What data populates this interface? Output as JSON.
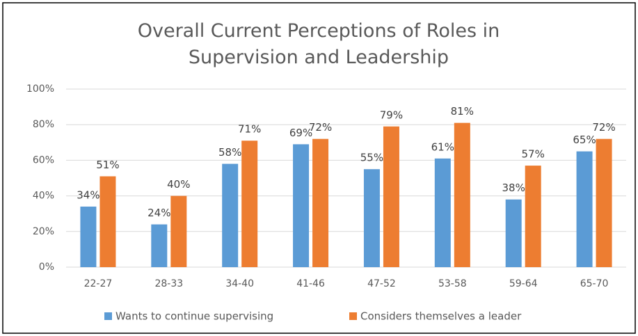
{
  "chart_data": {
    "type": "bar",
    "title": "Overall Current Perceptions of Roles in Supervision and Leadership",
    "categories": [
      "22-27",
      "28-33",
      "34-40",
      "41-46",
      "47-52",
      "53-58",
      "59-64",
      "65-70"
    ],
    "series": [
      {
        "name": "Wants to continue supervising",
        "color": "#5b9bd5",
        "values": [
          34,
          24,
          58,
          69,
          55,
          61,
          38,
          65
        ],
        "value_labels": [
          "34%",
          "24%",
          "58%",
          "69%",
          "55%",
          "61%",
          "38%",
          "65%"
        ]
      },
      {
        "name": "Considers themselves a leader",
        "color": "#ed7d31",
        "values": [
          51,
          40,
          71,
          72,
          79,
          81,
          57,
          72
        ],
        "value_labels": [
          "51%",
          "40%",
          "71%",
          "72%",
          "79%",
          "81%",
          "57%",
          "72%"
        ]
      }
    ],
    "ylim": [
      0,
      100
    ],
    "yticks": [
      {
        "value": 0,
        "label": "0%"
      },
      {
        "value": 20,
        "label": "20%"
      },
      {
        "value": 40,
        "label": "40%"
      },
      {
        "value": 60,
        "label": "60%"
      },
      {
        "value": 80,
        "label": "80%"
      },
      {
        "value": 100,
        "label": "100%"
      }
    ],
    "grid": true,
    "legend": "bottom"
  }
}
